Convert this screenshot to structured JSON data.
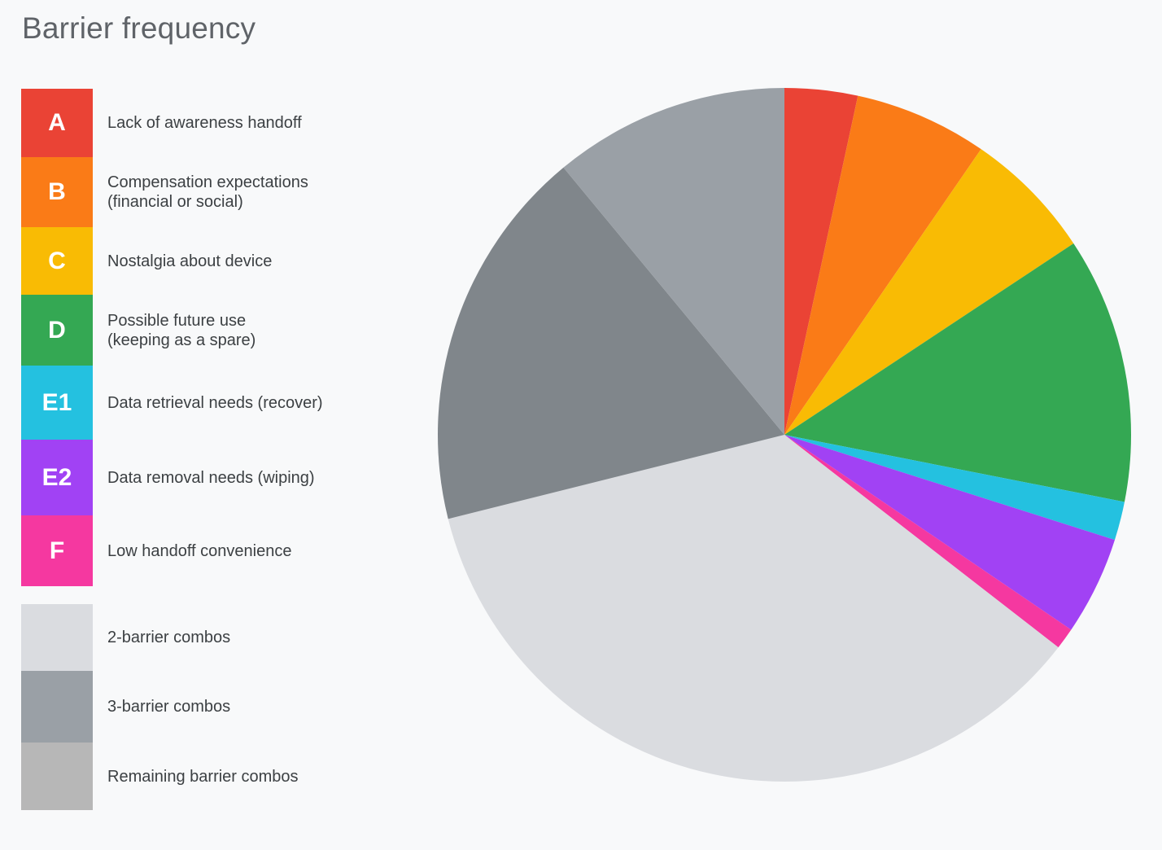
{
  "chart_data": {
    "type": "pie",
    "title": "Barrier frequency",
    "start_angle_deg": 0,
    "direction": "clockwise",
    "slices": [
      {
        "key": "A",
        "label_lines": [
          "Lack of awareness handoff"
        ],
        "value": 3.4,
        "color": "#ea4335"
      },
      {
        "key": "B",
        "label_lines": [
          "Compensation expectations",
          "(financial or social)"
        ],
        "value": 6.2,
        "color": "#fa7b17"
      },
      {
        "key": "C",
        "label_lines": [
          "Nostalgia about device"
        ],
        "value": 6.1,
        "color": "#f9bb04"
      },
      {
        "key": "D",
        "label_lines": [
          "Possible future use",
          "(keeping as a spare)"
        ],
        "value": 12.4,
        "color": "#34a853"
      },
      {
        "key": "E1",
        "label_lines": [
          "Data retrieval needs (recover)"
        ],
        "value": 1.8,
        "color": "#24c1e0"
      },
      {
        "key": "E2",
        "label_lines": [
          "Data removal needs (wiping)"
        ],
        "value": 4.6,
        "color": "#a142f4"
      },
      {
        "key": "F",
        "label_lines": [
          "Low handoff convenience"
        ],
        "value": 1.0,
        "color": "#f538a0"
      },
      {
        "key": "",
        "label_lines": [
          "2-barrier combos"
        ],
        "value": 35.6,
        "color": "#dadce0"
      },
      {
        "key": "",
        "label_lines": [
          "3-barrier combos"
        ],
        "value": 17.9,
        "color": "#80868b"
      },
      {
        "key": "",
        "label_lines": [
          "Remaining barrier combos"
        ],
        "value": 11.0,
        "color": "#9aa0a6"
      }
    ],
    "legend": {
      "placement": "left",
      "swatch_colors": [
        "#ea4335",
        "#fa7b17",
        "#f9bb04",
        "#34a853",
        "#24c1e0",
        "#a142f4",
        "#f538a0",
        "#dadce0",
        "#9aa0a6",
        "#b7b7b7"
      ]
    }
  }
}
